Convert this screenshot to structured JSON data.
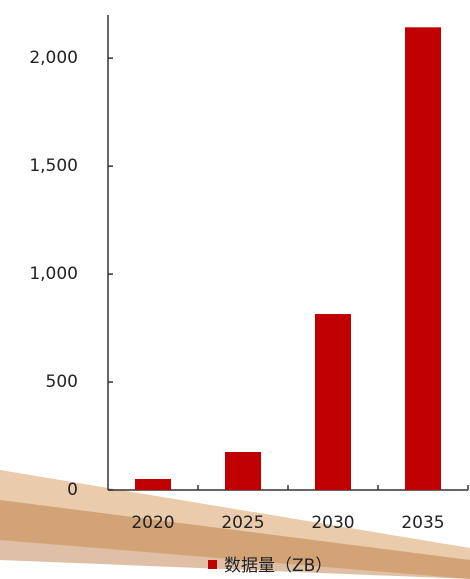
{
  "chart_data": {
    "type": "bar",
    "categories": [
      "2020",
      "2025",
      "2030",
      "2035"
    ],
    "series": [
      {
        "name": "数据量（ZB）",
        "color": "#c00000",
        "values": [
          51,
          176,
          815,
          2143
        ]
      }
    ],
    "ylim": [
      0,
      2200
    ],
    "yticks": [
      0,
      500,
      {
        "value": 1000,
        "label": "1,000"
      },
      {
        "value": 1500,
        "label": "1,500"
      },
      {
        "value": 2000,
        "label": "2,000"
      }
    ],
    "grid": false
  }
}
